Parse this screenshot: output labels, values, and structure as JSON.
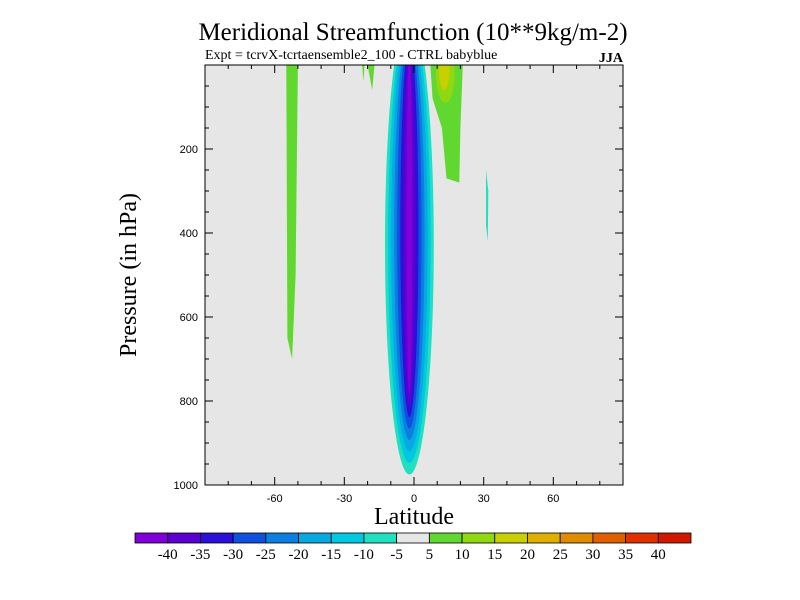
{
  "chart_data": {
    "type": "heatmap",
    "title": "Meridional Streamfunction (10**9kg/m-2)",
    "subtitle": "Expt = tcrvX-tcrtaensemble2_100 - CTRL babyblue",
    "season": "JJA",
    "xlabel": "Latitude",
    "ylabel": "Pressure (in hPa)",
    "xlim": [
      -90,
      90
    ],
    "ylim": [
      1000,
      0
    ],
    "y_inverted": true,
    "x_ticks": [
      -60,
      -30,
      0,
      30,
      60
    ],
    "y_ticks": [
      200,
      400,
      600,
      800,
      1000
    ],
    "background_color": "#e6e6e6",
    "colorbar": {
      "labels": [
        "-40",
        "-35",
        "-30",
        "-25",
        "-20",
        "-15",
        "-10",
        "-5",
        "5",
        "10",
        "15",
        "20",
        "25",
        "30",
        "35",
        "40"
      ],
      "colors": [
        "#7f00d8",
        "#5a00d0",
        "#2a10d8",
        "#1050e0",
        "#0a7fe0",
        "#08a8e0",
        "#00c8e0",
        "#20e0c0",
        "#e6e6e6",
        "#60d830",
        "#90d810",
        "#c8d000",
        "#e0b000",
        "#e08c00",
        "#e06000",
        "#e03000",
        "#d01800"
      ]
    },
    "features": [
      {
        "name": "tropical negative cell",
        "sign": "negative",
        "lat_range": [
          -13,
          8
        ],
        "pressure_range": [
          0,
          975
        ],
        "min_value": -40,
        "center_lat": -2,
        "center_pressure": 550
      },
      {
        "name": "southern positive band",
        "sign": "positive",
        "lat_range": [
          -55,
          -50
        ],
        "pressure_range": [
          0,
          700
        ],
        "value": 5
      },
      {
        "name": "upper positive cell",
        "sign": "positive",
        "lat_range": [
          7,
          20
        ],
        "pressure_range": [
          0,
          280
        ],
        "max_value": 15
      },
      {
        "name": "small positive patch",
        "sign": "positive",
        "lat_range": [
          -20,
          -17
        ],
        "pressure_range": [
          0,
          60
        ],
        "value": 5
      },
      {
        "name": "upper positive sliver",
        "sign": "positive",
        "lat_range": [
          -22,
          -21
        ],
        "pressure_range": [
          0,
          40
        ],
        "value": 5
      },
      {
        "name": "weak negative sliver",
        "sign": "negative",
        "lat_range": [
          31,
          32
        ],
        "pressure_range": [
          250,
          420
        ],
        "value": -5
      }
    ]
  }
}
